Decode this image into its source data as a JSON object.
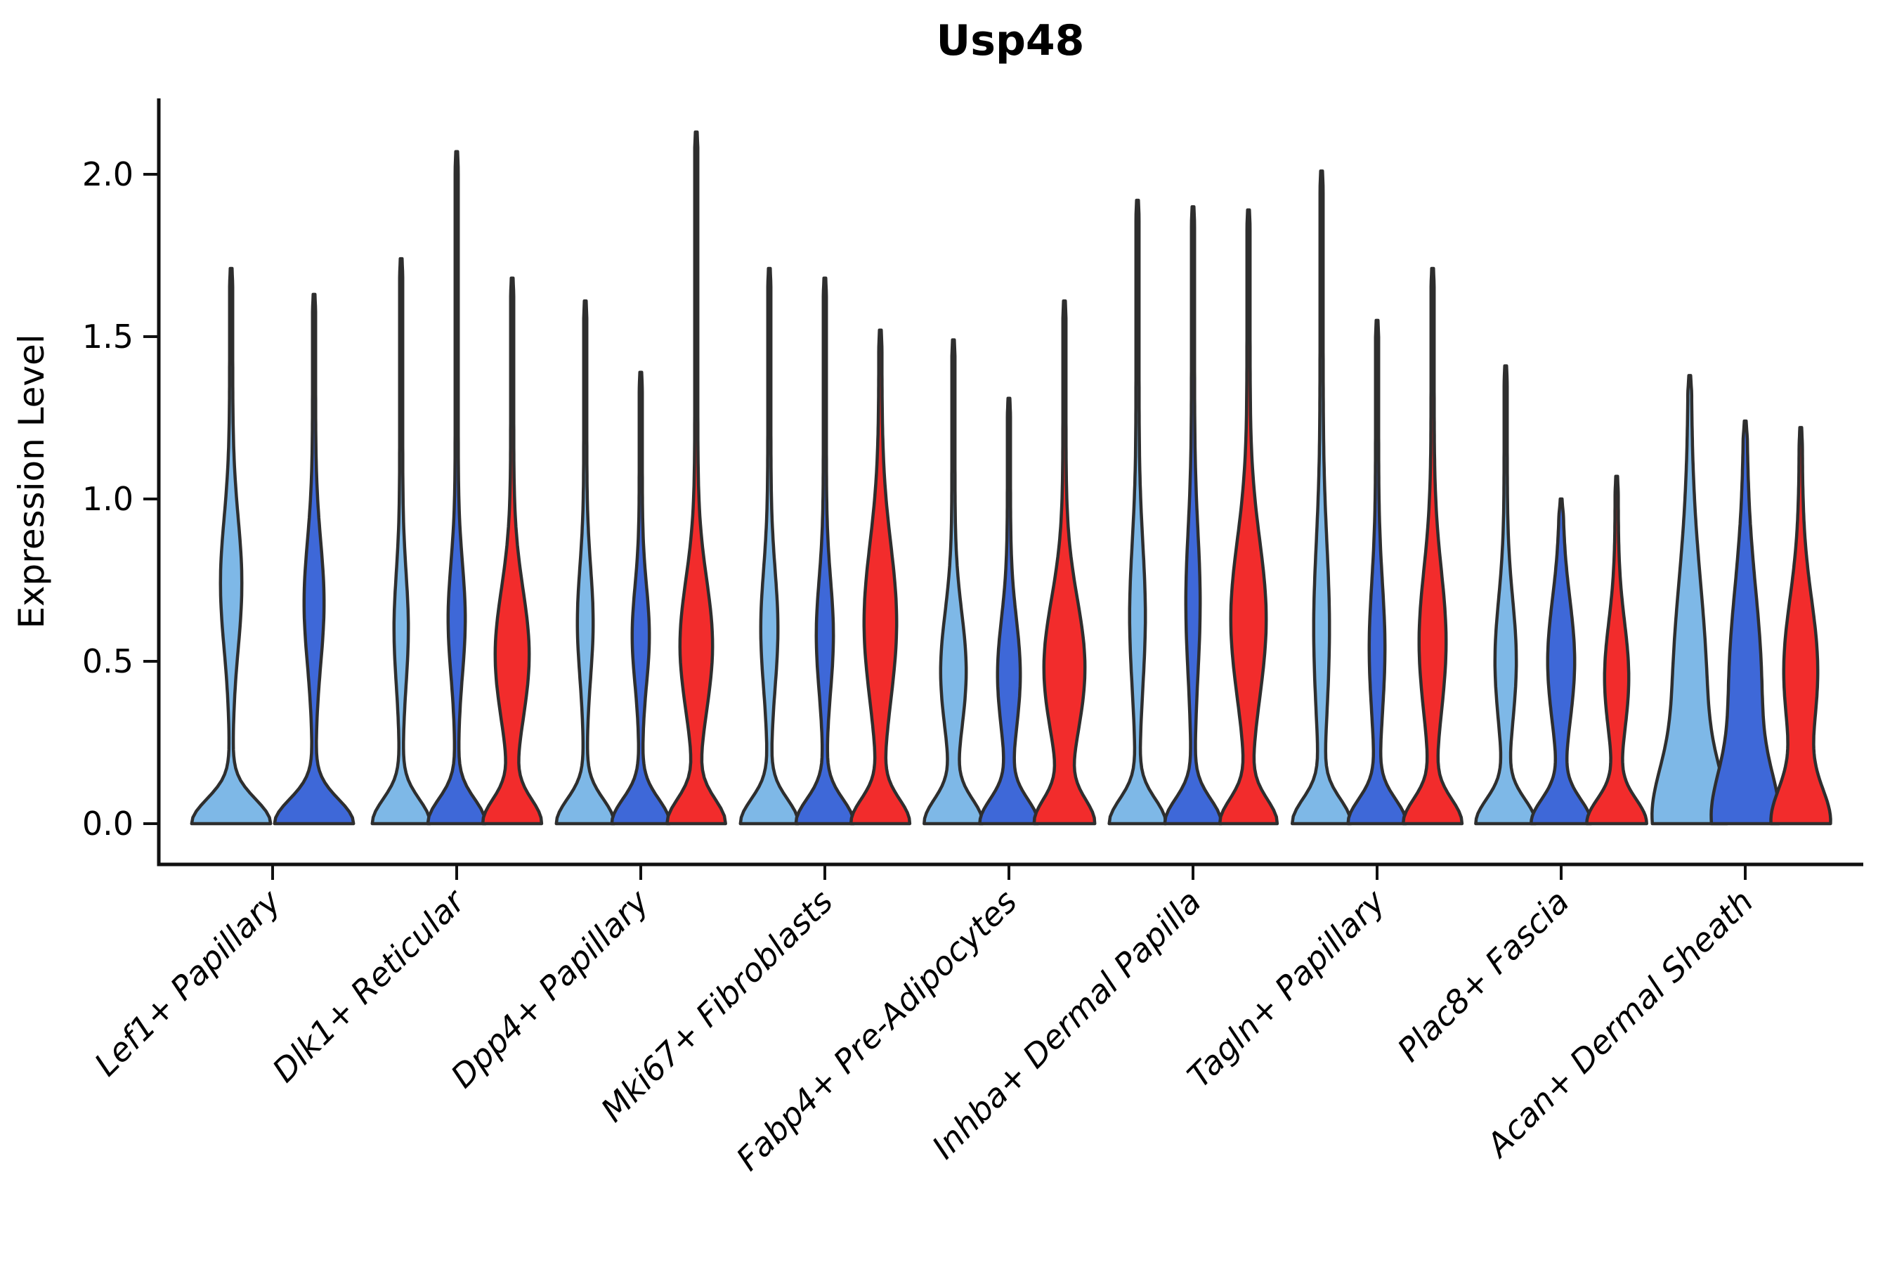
{
  "chart_data": {
    "type": "violin",
    "title": "Usp48",
    "ylabel": "Expression Level",
    "xlabel": "",
    "ylim": [
      0,
      2.2
    ],
    "yticks": [
      "0.0",
      "0.5",
      "1.0",
      "1.5",
      "2.0"
    ],
    "grid": false,
    "legend_position": "none",
    "palette": {
      "lightblue": "#7EB8E7",
      "darkblue": "#3E68D8",
      "red": "#F22C2C",
      "outline": "#2E2E2E",
      "axis": "#111111"
    },
    "groups": [
      {
        "label": "Lef1+ Papillary",
        "violins": [
          {
            "color": "lightblue",
            "max": 1.71,
            "base_w": 54,
            "base_s": 0.075,
            "bulge_w": 13,
            "bulge_c": 0.74,
            "bulge_s": 0.2
          },
          {
            "color": "darkblue",
            "max": 1.63,
            "base_w": 54,
            "base_s": 0.075,
            "bulge_w": 12,
            "bulge_c": 0.68,
            "bulge_s": 0.19
          }
        ]
      },
      {
        "label": "Dlk1+ Reticular",
        "violins": [
          {
            "color": "lightblue",
            "max": 1.74,
            "base_w": 39,
            "base_s": 0.075,
            "bulge_w": 8,
            "bulge_c": 0.6,
            "bulge_s": 0.17
          },
          {
            "color": "darkblue",
            "max": 2.07,
            "base_w": 39,
            "base_s": 0.075,
            "bulge_w": 10,
            "bulge_c": 0.63,
            "bulge_s": 0.17
          },
          {
            "color": "red",
            "max": 1.68,
            "base_w": 39,
            "base_s": 0.075,
            "bulge_w": 22,
            "bulge_c": 0.52,
            "bulge_s": 0.2
          }
        ]
      },
      {
        "label": "Dpp4+ Papillary",
        "violins": [
          {
            "color": "lightblue",
            "max": 1.61,
            "base_w": 39,
            "base_s": 0.075,
            "bulge_w": 9,
            "bulge_c": 0.62,
            "bulge_s": 0.17
          },
          {
            "color": "darkblue",
            "max": 1.39,
            "base_w": 39,
            "base_s": 0.075,
            "bulge_w": 10,
            "bulge_c": 0.58,
            "bulge_s": 0.15
          },
          {
            "color": "red",
            "max": 2.13,
            "base_w": 39,
            "base_s": 0.075,
            "bulge_w": 21,
            "bulge_c": 0.55,
            "bulge_s": 0.2
          }
        ]
      },
      {
        "label": "Mki67+ Fibroblasts",
        "violins": [
          {
            "color": "lightblue",
            "max": 1.71,
            "base_w": 39,
            "base_s": 0.075,
            "bulge_w": 10,
            "bulge_c": 0.6,
            "bulge_s": 0.18
          },
          {
            "color": "darkblue",
            "max": 1.68,
            "base_w": 39,
            "base_s": 0.075,
            "bulge_w": 10,
            "bulge_c": 0.58,
            "bulge_s": 0.17
          },
          {
            "color": "red",
            "max": 1.52,
            "base_w": 39,
            "base_s": 0.075,
            "bulge_w": 21,
            "bulge_c": 0.62,
            "bulge_s": 0.24
          }
        ]
      },
      {
        "label": "Fabp4+ Pre-Adipocytes",
        "violins": [
          {
            "color": "lightblue",
            "max": 1.49,
            "base_w": 39,
            "base_s": 0.075,
            "bulge_w": 16,
            "bulge_c": 0.47,
            "bulge_s": 0.18
          },
          {
            "color": "darkblue",
            "max": 1.31,
            "base_w": 39,
            "base_s": 0.075,
            "bulge_w": 14,
            "bulge_c": 0.46,
            "bulge_s": 0.17
          },
          {
            "color": "red",
            "max": 1.61,
            "base_w": 39,
            "base_s": 0.075,
            "bulge_w": 27,
            "bulge_c": 0.48,
            "bulge_s": 0.21
          }
        ]
      },
      {
        "label": "Inhba+ Dermal Papilla",
        "violins": [
          {
            "color": "lightblue",
            "max": 1.92,
            "base_w": 38,
            "base_s": 0.075,
            "bulge_w": 9,
            "bulge_c": 0.64,
            "bulge_s": 0.22
          },
          {
            "color": "darkblue",
            "max": 1.9,
            "base_w": 38,
            "base_s": 0.075,
            "bulge_w": 8,
            "bulge_c": 0.68,
            "bulge_s": 0.22
          },
          {
            "color": "red",
            "max": 1.89,
            "base_w": 38,
            "base_s": 0.075,
            "bulge_w": 23,
            "bulge_c": 0.63,
            "bulge_s": 0.24
          }
        ]
      },
      {
        "label": "Tagln+ Papillary",
        "violins": [
          {
            "color": "lightblue",
            "max": 2.01,
            "base_w": 39,
            "base_s": 0.075,
            "bulge_w": 9,
            "bulge_c": 0.6,
            "bulge_s": 0.26
          },
          {
            "color": "darkblue",
            "max": 1.55,
            "base_w": 39,
            "base_s": 0.075,
            "bulge_w": 9,
            "bulge_c": 0.54,
            "bulge_s": 0.2
          },
          {
            "color": "red",
            "max": 1.71,
            "base_w": 39,
            "base_s": 0.075,
            "bulge_w": 17,
            "bulge_c": 0.56,
            "bulge_s": 0.22
          }
        ]
      },
      {
        "label": "Plac8+ Fascia",
        "violins": [
          {
            "color": "lightblue",
            "max": 1.41,
            "base_w": 40,
            "base_s": 0.075,
            "bulge_w": 13,
            "bulge_c": 0.5,
            "bulge_s": 0.19
          },
          {
            "color": "darkblue",
            "max": 1.0,
            "base_w": 40,
            "base_s": 0.075,
            "bulge_w": 17,
            "bulge_c": 0.5,
            "bulge_s": 0.19
          },
          {
            "color": "red",
            "max": 1.07,
            "base_w": 40,
            "base_s": 0.075,
            "bulge_w": 15,
            "bulge_c": 0.45,
            "bulge_s": 0.17
          }
        ]
      },
      {
        "label": "Acan+ Dermal Sheath",
        "violins": [
          {
            "color": "lightblue",
            "max": 1.38,
            "base_w": 40,
            "base_s": 0.16,
            "bulge_w": 22,
            "bulge_c": 0.4,
            "bulge_s": 0.34
          },
          {
            "color": "darkblue",
            "max": 1.24,
            "base_w": 38,
            "base_s": 0.15,
            "bulge_w": 21,
            "bulge_c": 0.42,
            "bulge_s": 0.3
          },
          {
            "color": "red",
            "max": 1.22,
            "base_w": 38,
            "base_s": 0.11,
            "bulge_w": 22,
            "bulge_c": 0.47,
            "bulge_s": 0.22
          }
        ]
      }
    ]
  }
}
